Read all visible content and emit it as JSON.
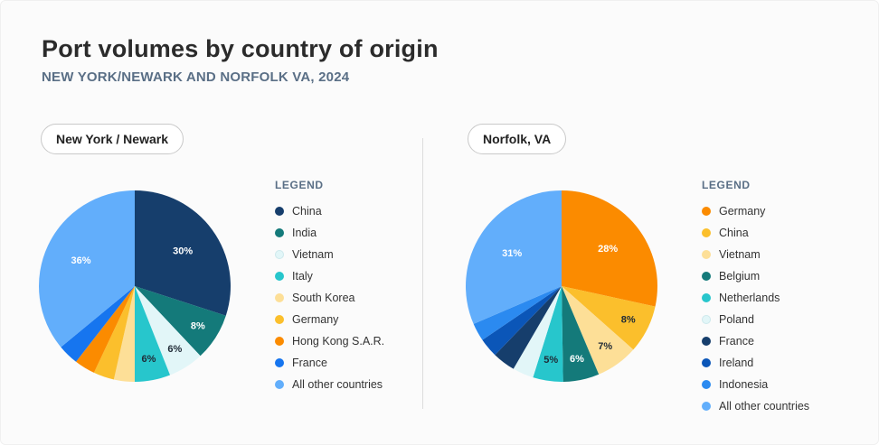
{
  "title": "Port volumes by country of origin",
  "subtitle": "NEW YORK/NEWARK AND NORFOLK VA, 2024",
  "legend_title": "LEGEND",
  "chart_data": [
    {
      "type": "pie",
      "title": "New York / Newark",
      "start_angle_deg": 0,
      "slices": [
        {
          "label": "China",
          "value": 30,
          "color": "#163e6c",
          "text": "30%",
          "text_color": "#ffffff"
        },
        {
          "label": "India",
          "value": 8,
          "color": "#147a7a",
          "text": "8%",
          "text_color": "#ffffff"
        },
        {
          "label": "Vietnam",
          "value": 6,
          "color": "#e2f6f8",
          "text": "6%",
          "text_color": "#1f2a36"
        },
        {
          "label": "Italy",
          "value": 6,
          "color": "#27c6cc",
          "text": "6%",
          "text_color": "#1f2a36"
        },
        {
          "label": "South Korea",
          "value": 3.5,
          "color": "#fddf97",
          "text": "",
          "text_color": "#1f2a36"
        },
        {
          "label": "Germany",
          "value": 3.5,
          "color": "#fbbf2c",
          "text": "",
          "text_color": "#1f2a36"
        },
        {
          "label": "Hong Kong S.A.R.",
          "value": 3.5,
          "color": "#fb8b00",
          "text": "",
          "text_color": "#1f2a36"
        },
        {
          "label": "France",
          "value": 3.5,
          "color": "#1675ef",
          "text": "",
          "text_color": "#ffffff"
        },
        {
          "label": "All other countries",
          "value": 36,
          "color": "#62aefb",
          "text": "36%",
          "text_color": "#ffffff"
        }
      ]
    },
    {
      "type": "pie",
      "title": "Norfolk, VA",
      "start_angle_deg": 0,
      "slices": [
        {
          "label": "Germany",
          "value": 28,
          "color": "#fb8b00",
          "text": "28%",
          "text_color": "#ffffff"
        },
        {
          "label": "China",
          "value": 8,
          "color": "#fbbf2c",
          "text": "8%",
          "text_color": "#1f2a36"
        },
        {
          "label": "Vietnam",
          "value": 7,
          "color": "#fddf97",
          "text": "7%",
          "text_color": "#1f2a36"
        },
        {
          "label": "Belgium",
          "value": 6,
          "color": "#147a7a",
          "text": "6%",
          "text_color": "#ffffff"
        },
        {
          "label": "Netherlands",
          "value": 5,
          "color": "#27c6cc",
          "text": "5%",
          "text_color": "#1f2a36"
        },
        {
          "label": "Poland",
          "value": 3.5,
          "color": "#e2f6f8",
          "text": "",
          "text_color": "#1f2a36"
        },
        {
          "label": "France",
          "value": 3.8,
          "color": "#163e6c",
          "text": "",
          "text_color": "#ffffff"
        },
        {
          "label": "Ireland",
          "value": 3.2,
          "color": "#0b56b8",
          "text": "",
          "text_color": "#ffffff"
        },
        {
          "label": "Indonesia",
          "value": 3,
          "color": "#2b8af0",
          "text": "",
          "text_color": "#ffffff"
        },
        {
          "label": "All other countries",
          "value": 31,
          "color": "#62aefb",
          "text": "31%",
          "text_color": "#ffffff"
        }
      ]
    }
  ],
  "legends": [
    {
      "items": [
        "China",
        "India",
        "Vietnam",
        "Italy",
        "South Korea",
        "Germany",
        "Hong Kong S.A.R.",
        "France",
        "All other countries"
      ]
    },
    {
      "items": [
        "Germany",
        "China",
        "Vietnam",
        "Belgium",
        "Netherlands",
        "Poland",
        "France",
        "Ireland",
        "Indonesia",
        "All other countries"
      ]
    }
  ]
}
